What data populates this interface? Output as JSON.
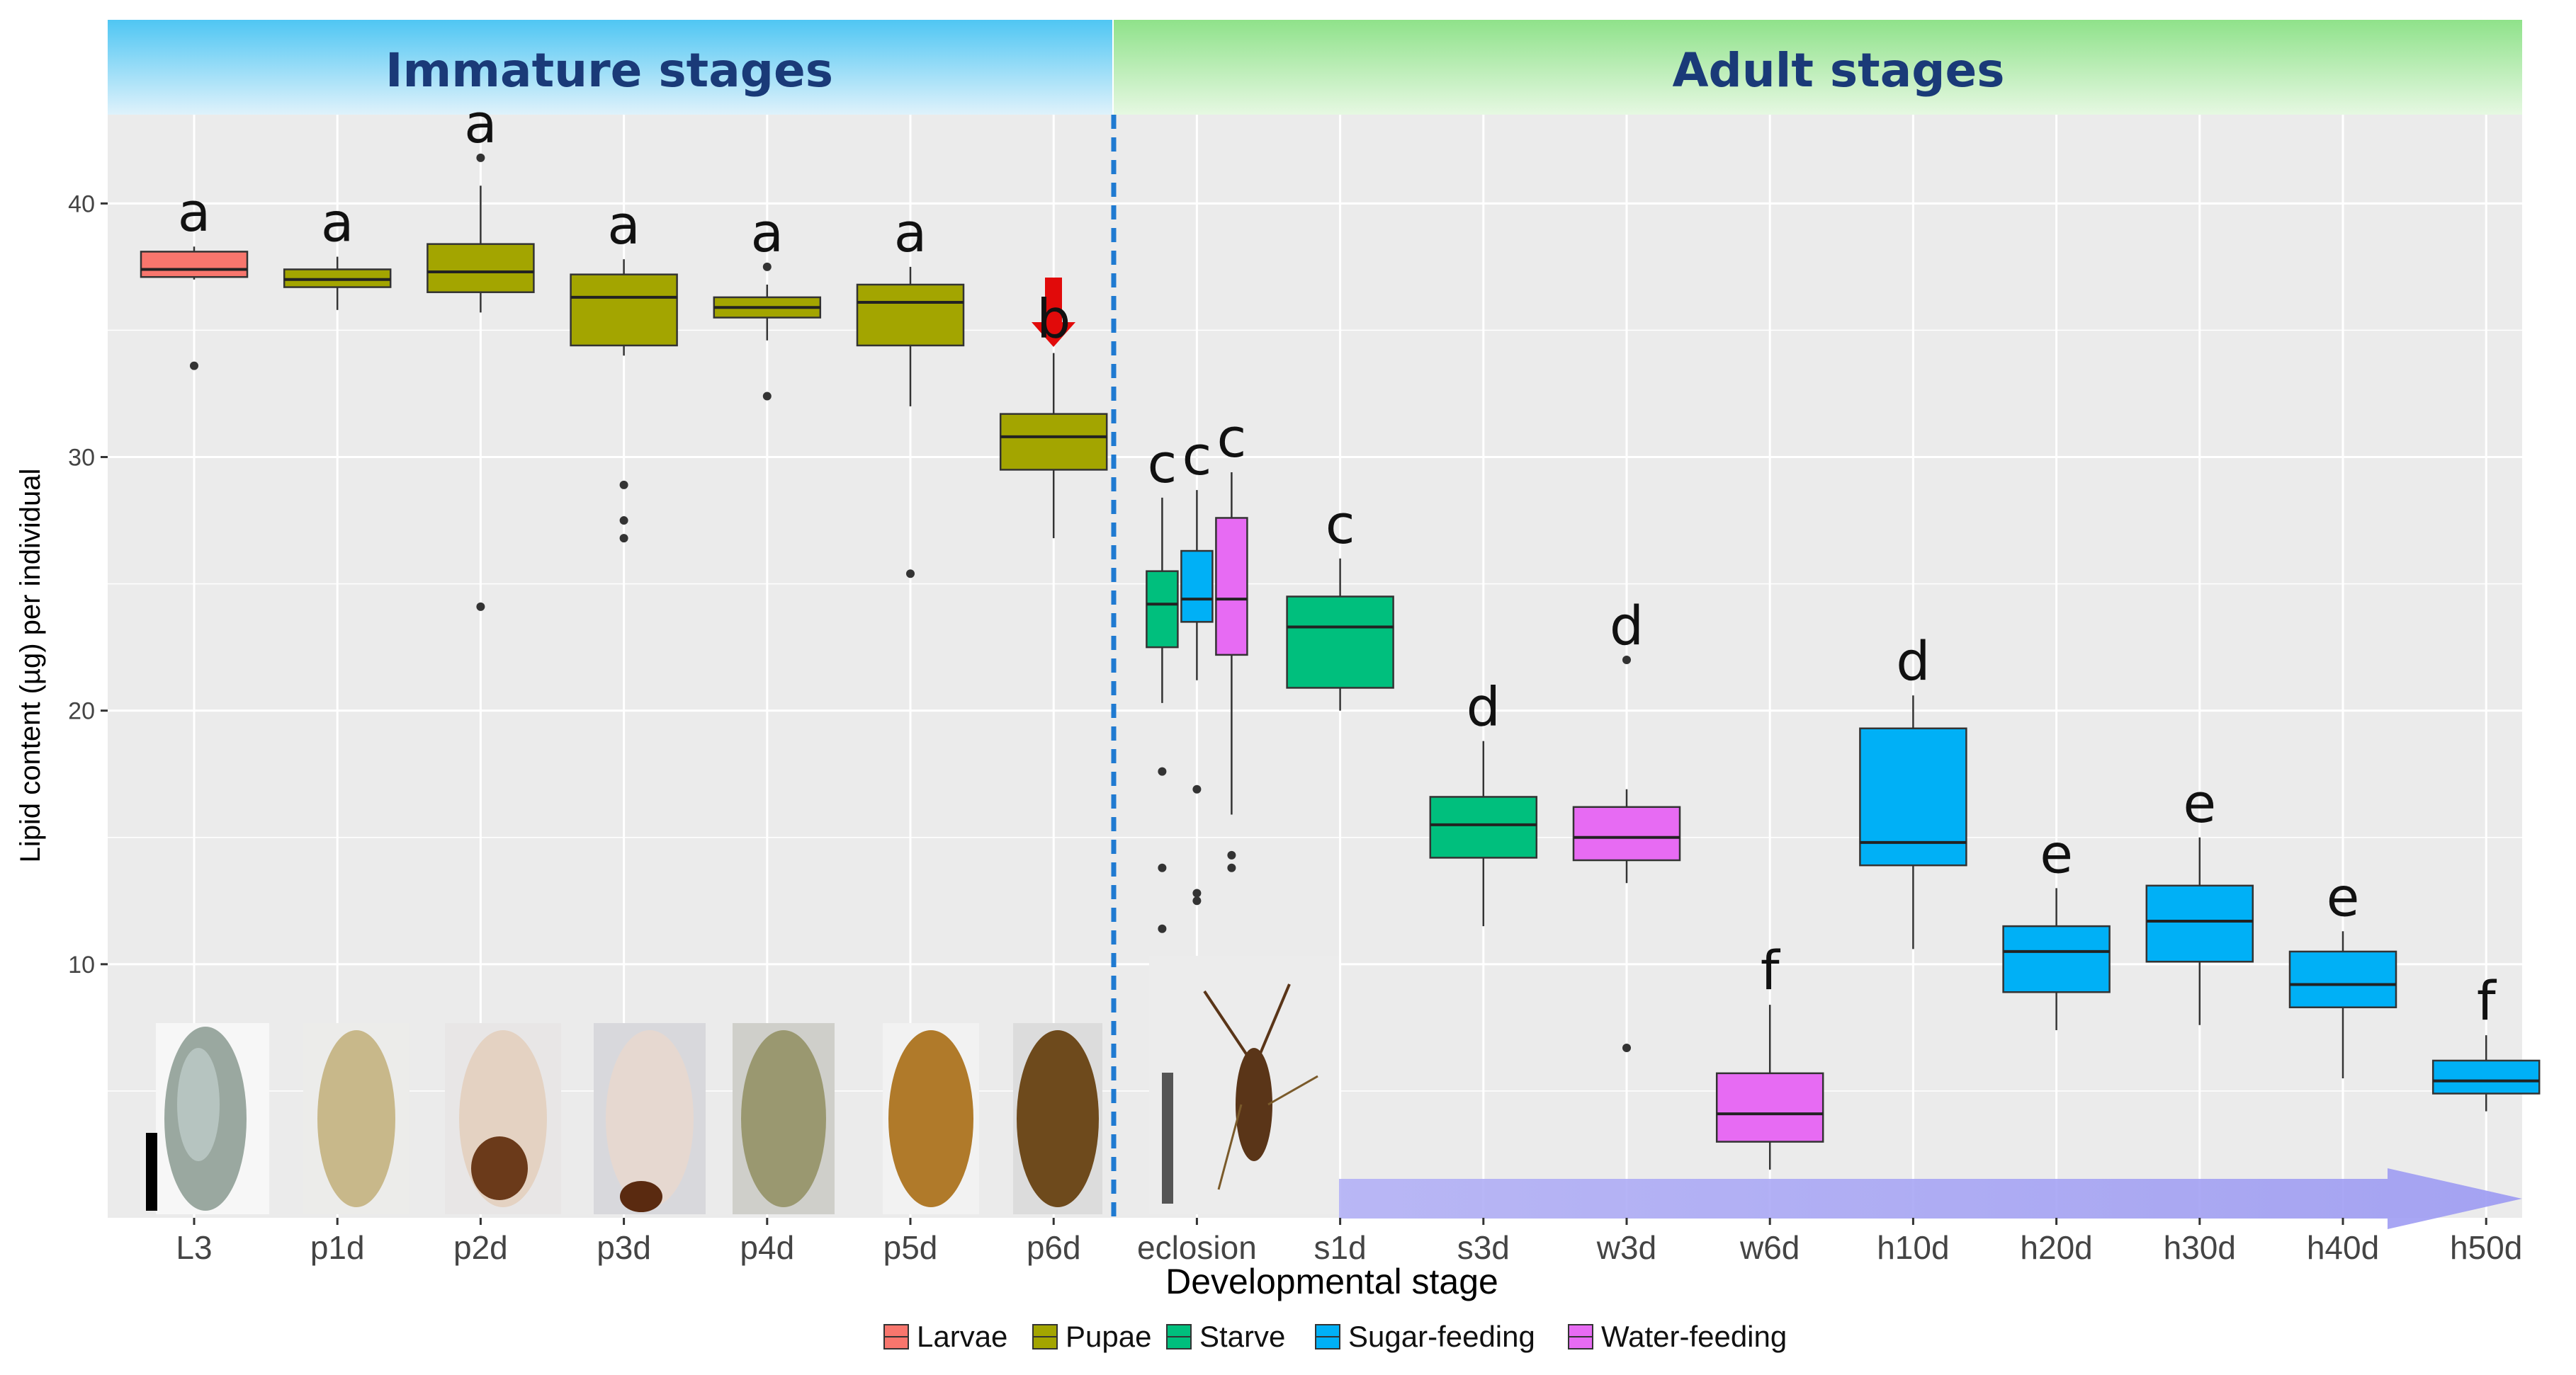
{
  "chart_data": {
    "type": "box",
    "banners": {
      "immature": "Immature stages",
      "adult": "Adult stages"
    },
    "xlabel": "Developmental stage",
    "ylabel": "Lipid content (µg) per individual",
    "yticks": [
      10,
      20,
      30,
      40
    ],
    "ylim": [
      0,
      43.5
    ],
    "grid": true,
    "legend": {
      "position": "bottom",
      "items": [
        {
          "name": "Larvae",
          "color": "#f8766d"
        },
        {
          "name": "Pupae",
          "color": "#a3a500"
        },
        {
          "name": "Starve",
          "color": "#00bf7d"
        },
        {
          "name": "Sugar-feeding",
          "color": "#00b0f6"
        },
        {
          "name": "Water-feeding",
          "color": "#e76bf3"
        }
      ]
    },
    "categories": [
      "L3",
      "p1d",
      "p2d",
      "p3d",
      "p4d",
      "p5d",
      "p6d",
      "eclosion",
      "s1d",
      "s3d",
      "w3d",
      "w6d",
      "h10d",
      "h20d",
      "h30d",
      "h40d",
      "h50d"
    ],
    "boxes": [
      {
        "category": "L3",
        "group": "Larvae",
        "min": 37.0,
        "q1": 37.1,
        "median": 37.4,
        "q3": 38.1,
        "max": 38.3,
        "outliers": [
          33.6
        ],
        "letter": "a"
      },
      {
        "category": "p1d",
        "group": "Pupae",
        "min": 35.8,
        "q1": 36.7,
        "median": 37.0,
        "q3": 37.4,
        "max": 37.9,
        "outliers": [],
        "letter": "a"
      },
      {
        "category": "p2d",
        "group": "Pupae",
        "min": 35.7,
        "q1": 36.5,
        "median": 37.3,
        "q3": 38.4,
        "max": 40.7,
        "outliers": [
          41.8,
          24.1
        ],
        "letter": "a"
      },
      {
        "category": "p3d",
        "group": "Pupae",
        "min": 34.0,
        "q1": 34.4,
        "median": 36.3,
        "q3": 37.2,
        "max": 37.8,
        "outliers": [
          28.9,
          27.5,
          26.8
        ],
        "letter": "a"
      },
      {
        "category": "p4d",
        "group": "Pupae",
        "min": 34.6,
        "q1": 35.5,
        "median": 35.9,
        "q3": 36.3,
        "max": 36.8,
        "outliers": [
          37.5,
          32.4
        ],
        "letter": "a"
      },
      {
        "category": "p5d",
        "group": "Pupae",
        "min": 32.0,
        "q1": 34.4,
        "median": 36.1,
        "q3": 36.8,
        "max": 37.5,
        "outliers": [
          25.4
        ],
        "letter": "a"
      },
      {
        "category": "p6d",
        "group": "Pupae",
        "min": 26.8,
        "q1": 29.5,
        "median": 30.8,
        "q3": 31.7,
        "max": 34.1,
        "outliers": [],
        "letter": "b"
      },
      {
        "category": "eclosion",
        "group": "Starve",
        "min": 20.3,
        "q1": 22.5,
        "median": 24.2,
        "q3": 25.5,
        "max": 28.4,
        "outliers": [
          17.6,
          13.8,
          11.4
        ],
        "letter": "c"
      },
      {
        "category": "eclosion",
        "group": "Sugar-feeding",
        "min": 21.2,
        "q1": 23.5,
        "median": 24.4,
        "q3": 26.3,
        "max": 28.7,
        "outliers": [
          16.9,
          12.8,
          12.5
        ],
        "letter": "c"
      },
      {
        "category": "eclosion",
        "group": "Water-feeding",
        "min": 15.9,
        "q1": 22.2,
        "median": 24.4,
        "q3": 27.6,
        "max": 29.4,
        "outliers": [
          14.3,
          13.8
        ],
        "letter": "c"
      },
      {
        "category": "s1d",
        "group": "Starve",
        "min": 20.0,
        "q1": 20.9,
        "median": 23.3,
        "q3": 24.5,
        "max": 26.0,
        "outliers": [],
        "letter": "c"
      },
      {
        "category": "s3d",
        "group": "Starve",
        "min": 11.5,
        "q1": 14.2,
        "median": 15.5,
        "q3": 16.6,
        "max": 18.8,
        "outliers": [],
        "letter": "d"
      },
      {
        "category": "w3d",
        "group": "Water-feeding",
        "min": 13.2,
        "q1": 14.1,
        "median": 15.0,
        "q3": 16.2,
        "max": 16.9,
        "outliers": [
          22.0,
          6.7
        ],
        "letter": "d"
      },
      {
        "category": "w6d",
        "group": "Water-feeding",
        "min": 1.9,
        "q1": 3.0,
        "median": 4.1,
        "q3": 5.7,
        "max": 8.4,
        "outliers": [],
        "letter": "f"
      },
      {
        "category": "h10d",
        "group": "Sugar-feeding",
        "min": 10.6,
        "q1": 13.9,
        "median": 14.8,
        "q3": 19.3,
        "max": 20.6,
        "outliers": [],
        "letter": "d"
      },
      {
        "category": "h20d",
        "group": "Sugar-feeding",
        "min": 7.4,
        "q1": 8.9,
        "median": 10.5,
        "q3": 11.5,
        "max": 13.0,
        "outliers": [],
        "letter": "e"
      },
      {
        "category": "h30d",
        "group": "Sugar-feeding",
        "min": 7.6,
        "q1": 10.1,
        "median": 11.7,
        "q3": 13.1,
        "max": 15.0,
        "outliers": [],
        "letter": "e"
      },
      {
        "category": "h40d",
        "group": "Sugar-feeding",
        "min": 5.5,
        "q1": 8.3,
        "median": 9.2,
        "q3": 10.5,
        "max": 11.3,
        "outliers": [],
        "letter": "e"
      },
      {
        "category": "h50d",
        "group": "Sugar-feeding",
        "min": 4.2,
        "q1": 4.9,
        "median": 5.4,
        "q3": 6.2,
        "max": 7.2,
        "outliers": [],
        "letter": "f"
      }
    ]
  }
}
